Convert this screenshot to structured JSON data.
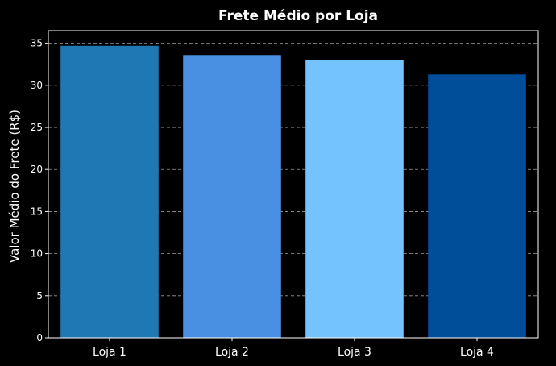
{
  "chart_data": {
    "type": "bar",
    "title": "Frete Médio por Loja",
    "xlabel": "",
    "ylabel": "Valor Médio do Frete (R$)",
    "categories": [
      "Loja 1",
      "Loja 2",
      "Loja 3",
      "Loja 4"
    ],
    "values": [
      34.7,
      33.6,
      33.0,
      31.3
    ],
    "colors": [
      "#1f77b4",
      "#4a90e2",
      "#74c3ff",
      "#004e9a"
    ],
    "ylim": [
      0,
      36.5
    ],
    "yticks": [
      0,
      5,
      10,
      15,
      20,
      25,
      30,
      35
    ],
    "grid": true,
    "grid_axis": "y",
    "background": "#000000",
    "text_color": "#ffffff"
  }
}
